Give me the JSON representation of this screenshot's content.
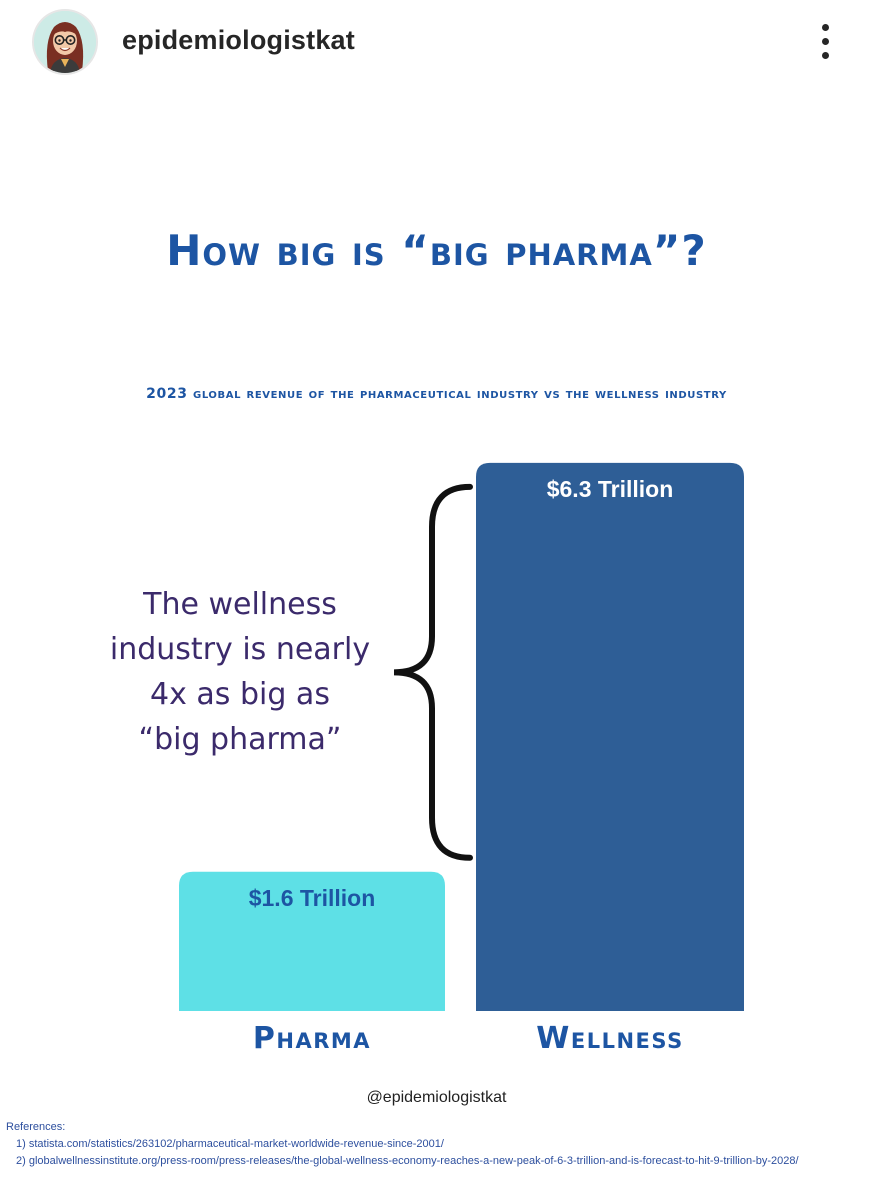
{
  "header": {
    "username": "epidemiologistkat",
    "avatar_icon": "cartoon-avatar-icon",
    "more_icon": "more-vertical-icon"
  },
  "post": {
    "title": "How big is “big pharma”?",
    "subtitle": "2023 global revenue of the pharmaceutical industry vs the wellness industry",
    "annotation": [
      "The wellness",
      "industry is nearly",
      "4x as big as",
      "“big pharma”"
    ],
    "credit": "@epidemiologistkat",
    "references_heading": "References:",
    "references": [
      "1) statista.com/statistics/263102/pharmaceutical-market-worldwide-revenue-since-2001/",
      "2) globalwellnessinstitute.org/press-room/press-releases/the-global-wellness-economy-reaches-a-new-peak-of-6-3-trillion-and-is-forecast-to-hit-9-trillion-by-2028/"
    ],
    "colors": {
      "title": "#1d55a3",
      "pharma_bar": "#5ee0e6",
      "wellness_bar": "#2e5e96"
    }
  },
  "chart_data": {
    "type": "bar",
    "categories": [
      "Pharma",
      "Wellness"
    ],
    "values": [
      1.6,
      6.3
    ],
    "data_labels": [
      "$1.6 Trillion",
      "$6.3 Trillion"
    ],
    "title": "How big is “big pharma”?",
    "subtitle": "2023 global revenue of the pharmaceutical industry vs the wellness industry",
    "unit": "Trillion USD",
    "colors": [
      "#5ee0e6",
      "#2e5e96"
    ],
    "grid": false,
    "legend": "none"
  }
}
